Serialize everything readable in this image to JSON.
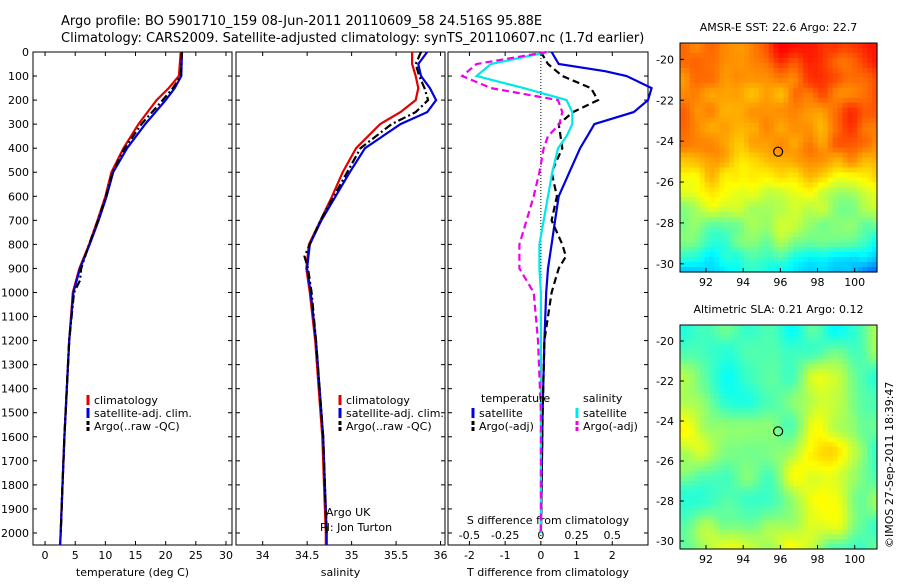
{
  "header": {
    "line1": "Argo profile: BO 5901710_159 08-Jun-2011 20110609_58 24.516S 95.88E",
    "line2": "Climatology: CARS2009. Satellite-adjusted climatology: synTS_20110607.nc (1.7d earlier)"
  },
  "watermark": "©IMOS 27-Sep-2011 18:39:47",
  "colors": {
    "climatology": "#e00000",
    "satellite": "#0000e0",
    "argo": "#000000",
    "sal_satellite": "#00e8e8",
    "sal_argo": "#ee00ee"
  },
  "chart_data": [
    {
      "type": "line",
      "xlabel": "temperature (deg C)",
      "ylabel": "",
      "xlim": [
        -2,
        31
      ],
      "ylim": [
        2050,
        0
      ],
      "xticks": [
        "0",
        "5",
        "10",
        "15",
        "20",
        "25",
        "30"
      ],
      "yticks": [
        "0",
        "100",
        "200",
        "300",
        "400",
        "500",
        "600",
        "700",
        "800",
        "900",
        "1000",
        "1100",
        "1200",
        "1300",
        "1400",
        "1500",
        "1600",
        "1700",
        "1800",
        "1900",
        "2000"
      ],
      "legend": [
        "climatology",
        "satellite-adj. clim.",
        "Argo(..raw -QC)"
      ],
      "series": [
        {
          "name": "climatology",
          "depth": [
            0,
            100,
            150,
            200,
            300,
            400,
            500,
            600,
            700,
            800,
            900,
            1000,
            1200,
            1400,
            1600,
            1800,
            2000,
            2050
          ],
          "values": [
            22.5,
            22.2,
            20.5,
            18.5,
            15.5,
            13.0,
            11.0,
            10.0,
            8.7,
            7.3,
            5.7,
            4.6,
            4.0,
            3.6,
            3.2,
            2.9,
            2.6,
            2.5
          ]
        },
        {
          "name": "satellite-adj. clim.",
          "depth": [
            0,
            100,
            150,
            200,
            300,
            400,
            500,
            600,
            700,
            800,
            900,
            1000,
            1200,
            1400,
            1600,
            1800,
            2000,
            2050
          ],
          "values": [
            22.7,
            22.6,
            21.5,
            20.0,
            16.6,
            13.6,
            11.3,
            10.2,
            8.9,
            7.4,
            5.8,
            4.7,
            4.0,
            3.6,
            3.2,
            2.9,
            2.6,
            2.5
          ]
        },
        {
          "name": "Argo(..raw -QC)",
          "depth": [
            0,
            100,
            150,
            200,
            300,
            400,
            500,
            600,
            700,
            800,
            900,
            950,
            1000,
            1200,
            1400,
            1600,
            1800,
            2000
          ],
          "values": [
            22.7,
            22.5,
            21.2,
            19.5,
            16.0,
            13.2,
            11.2,
            10.1,
            8.8,
            7.3,
            6.0,
            5.8,
            4.8,
            4.0,
            3.6,
            3.2,
            2.9,
            2.6
          ]
        }
      ]
    },
    {
      "type": "line",
      "xlabel": "salinity",
      "ylabel": "",
      "xlim": [
        33.7,
        36.05
      ],
      "ylim": [
        2050,
        0
      ],
      "xticks": [
        "34",
        "34.5",
        "35",
        "35.5",
        "36"
      ],
      "legend": [
        "climatology",
        "satellite-adj. clim.",
        "Argo(..raw -QC)"
      ],
      "annotation": [
        "Argo UK",
        "PI: Jon Turton"
      ],
      "series": [
        {
          "name": "climatology",
          "depth": [
            0,
            50,
            100,
            150,
            200,
            250,
            300,
            400,
            500,
            600,
            700,
            800,
            900,
            1000,
            1200,
            1400,
            1600,
            1800,
            2000,
            2050
          ],
          "values": [
            35.68,
            35.68,
            35.72,
            35.75,
            35.72,
            35.55,
            35.32,
            35.05,
            34.9,
            34.78,
            34.65,
            34.52,
            34.49,
            34.53,
            34.59,
            34.63,
            34.67,
            34.69,
            34.71,
            34.71
          ]
        },
        {
          "name": "satellite-adj. clim.",
          "depth": [
            0,
            50,
            100,
            150,
            200,
            250,
            300,
            400,
            500,
            600,
            700,
            800,
            900,
            1000,
            1200,
            1400,
            1600,
            1800,
            2000,
            2050
          ],
          "values": [
            35.85,
            35.75,
            35.78,
            35.88,
            35.95,
            35.85,
            35.55,
            35.15,
            34.98,
            34.82,
            34.66,
            34.53,
            34.5,
            34.54,
            34.6,
            34.64,
            34.68,
            34.7,
            34.72,
            34.72
          ]
        },
        {
          "name": "Argo(..raw -QC)",
          "depth": [
            0,
            50,
            100,
            150,
            200,
            250,
            300,
            400,
            500,
            600,
            700,
            800,
            850,
            900,
            1000,
            1200,
            1400,
            1600,
            1800,
            2000
          ],
          "values": [
            35.78,
            35.72,
            35.76,
            35.82,
            35.86,
            35.72,
            35.45,
            35.1,
            34.95,
            34.8,
            34.65,
            34.53,
            34.47,
            34.51,
            34.55,
            34.6,
            34.64,
            34.68,
            34.7,
            34.72
          ]
        }
      ]
    },
    {
      "type": "line",
      "xlabel": "T difference from climatology",
      "x2label": "S difference from climatology",
      "xlim": [
        -2.6,
        3.0
      ],
      "x2lim": [
        -0.65,
        0.75
      ],
      "ylim": [
        2050,
        0
      ],
      "xticks": [
        "-2",
        "-1",
        "0",
        "1",
        "2"
      ],
      "x2ticks": [
        "-0.5",
        "-0.25",
        "0",
        "0.25",
        "0.5"
      ],
      "legend_headers": [
        "temperature",
        "salinity"
      ],
      "legend": [
        "satellite",
        "Argo(-adj)",
        "satellite",
        "Argo(-adj)"
      ],
      "series": [
        {
          "name": "T satellite",
          "depth": [
            0,
            50,
            80,
            100,
            150,
            200,
            250,
            300,
            350,
            400,
            500,
            600,
            700,
            800,
            900,
            1000,
            1200,
            1500,
            2000
          ],
          "values": [
            0.3,
            0.5,
            1.8,
            2.4,
            3.1,
            3.0,
            2.6,
            1.5,
            1.3,
            1.1,
            0.8,
            0.5,
            0.4,
            0.3,
            0.2,
            0.15,
            0.1,
            0.05,
            0.0
          ]
        },
        {
          "name": "T Argo(-adj)",
          "depth": [
            0,
            50,
            100,
            150,
            200,
            250,
            300,
            400,
            500,
            600,
            700,
            800,
            850,
            900,
            1000,
            1200,
            1500,
            2000
          ],
          "values": [
            0.0,
            0.2,
            0.6,
            1.4,
            1.6,
            0.9,
            0.5,
            0.6,
            0.3,
            0.45,
            0.3,
            0.6,
            0.7,
            0.5,
            0.3,
            0.1,
            0.05,
            0.0
          ]
        },
        {
          "name": "S satellite",
          "depth": [
            0,
            50,
            100,
            150,
            200,
            250,
            300,
            350,
            400,
            500,
            600,
            700,
            800,
            900,
            1000,
            1200,
            1500,
            2000
          ],
          "values": [
            0.05,
            -0.35,
            -0.45,
            -0.12,
            0.18,
            0.22,
            0.22,
            0.18,
            0.12,
            0.08,
            0.05,
            0.02,
            -0.01,
            -0.01,
            0.0,
            0.0,
            0.0,
            0.0
          ]
        },
        {
          "name": "S Argo(-adj)",
          "depth": [
            0,
            50,
            100,
            150,
            200,
            250,
            300,
            350,
            400,
            500,
            600,
            700,
            800,
            900,
            1000,
            1200,
            1500,
            2000
          ],
          "values": [
            0.04,
            -0.45,
            -0.55,
            -0.35,
            0.12,
            0.15,
            0.13,
            0.05,
            0.02,
            -0.01,
            -0.05,
            -0.1,
            -0.15,
            -0.15,
            -0.05,
            -0.02,
            0.0,
            0.0
          ]
        }
      ]
    },
    {
      "type": "heatmap",
      "title": "AMSR-E SST: 22.6 Argo: 22.7",
      "xticks": [
        "92",
        "94",
        "96",
        "98",
        "100"
      ],
      "yticks": [
        "-20",
        "-22",
        "-24",
        "-26",
        "-28",
        "-30"
      ],
      "xlim": [
        90.6,
        101.2
      ],
      "ylim": [
        -30.4,
        -19.2
      ],
      "marker": {
        "lon": 95.88,
        "lat": -24.516
      }
    },
    {
      "type": "heatmap",
      "title": "Altimetric SLA: 0.21 Argo: 0.12",
      "xticks": [
        "92",
        "94",
        "96",
        "98",
        "100"
      ],
      "yticks": [
        "-20",
        "-22",
        "-24",
        "-26",
        "-28",
        "-30"
      ],
      "xlim": [
        90.6,
        101.2
      ],
      "ylim": [
        -30.4,
        -19.2
      ],
      "marker": {
        "lon": 95.88,
        "lat": -24.516
      }
    }
  ]
}
